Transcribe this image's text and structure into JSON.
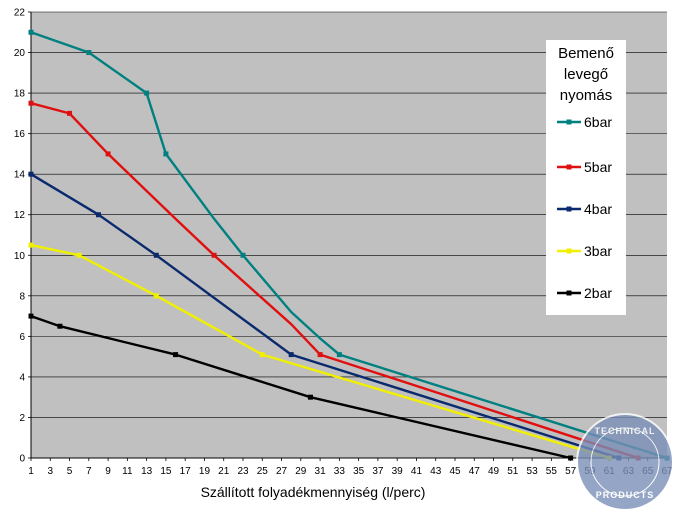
{
  "chart_data": {
    "type": "line",
    "xlabel": "Szállított folyadékmennyiség (l/perc)",
    "ylabel": "",
    "xlim": [
      1,
      67
    ],
    "ylim": [
      0,
      22
    ],
    "x_ticks": [
      1,
      3,
      5,
      7,
      9,
      11,
      13,
      15,
      17,
      19,
      21,
      23,
      25,
      27,
      29,
      31,
      33,
      35,
      37,
      39,
      41,
      43,
      45,
      47,
      49,
      51,
      53,
      55,
      57,
      59,
      61,
      63,
      65,
      67
    ],
    "y_ticks": [
      0,
      2,
      4,
      6,
      8,
      10,
      12,
      14,
      16,
      18,
      20,
      22
    ],
    "grid": "horizontal",
    "legend_position": "right",
    "legend_title": [
      "Bemenő",
      "levegő",
      "nyomás"
    ],
    "series": [
      {
        "name": "6bar",
        "color": "#008080",
        "points": [
          [
            1,
            21
          ],
          [
            7,
            20
          ],
          [
            13,
            18
          ],
          [
            15,
            15
          ],
          [
            20,
            11.8
          ],
          [
            23,
            10
          ],
          [
            28,
            7.2
          ],
          [
            31,
            5.9
          ],
          [
            33,
            5.1
          ],
          [
            67,
            0
          ]
        ],
        "markers": [
          [
            1,
            21
          ],
          [
            7,
            20
          ],
          [
            13,
            18
          ],
          [
            15,
            15
          ],
          [
            23,
            10
          ],
          [
            33,
            5.1
          ],
          [
            67,
            0
          ]
        ]
      },
      {
        "name": "5bar",
        "color": "#e01010",
        "points": [
          [
            1,
            17.5
          ],
          [
            5,
            17
          ],
          [
            9,
            15
          ],
          [
            16,
            11.8
          ],
          [
            20,
            10
          ],
          [
            28,
            6.6
          ],
          [
            31,
            5.1
          ],
          [
            64,
            0
          ]
        ],
        "markers": [
          [
            1,
            17.5
          ],
          [
            5,
            17
          ],
          [
            9,
            15
          ],
          [
            20,
            10
          ],
          [
            31,
            5.1
          ],
          [
            64,
            0
          ]
        ]
      },
      {
        "name": "4bar",
        "color": "#0a2a6e",
        "points": [
          [
            1,
            14
          ],
          [
            8,
            12
          ],
          [
            14,
            10
          ],
          [
            28,
            5.1
          ],
          [
            62,
            0
          ]
        ],
        "markers": [
          [
            1,
            14
          ],
          [
            8,
            12
          ],
          [
            14,
            10
          ],
          [
            28,
            5.1
          ],
          [
            62,
            0
          ]
        ]
      },
      {
        "name": "3bar",
        "color": "#f0f000",
        "points": [
          [
            1,
            10.5
          ],
          [
            6,
            10
          ],
          [
            14,
            8
          ],
          [
            25,
            5.1
          ],
          [
            61,
            0
          ]
        ],
        "markers": [
          [
            1,
            10.5
          ],
          [
            6,
            10
          ],
          [
            14,
            8
          ],
          [
            25,
            5.1
          ],
          [
            61,
            0
          ]
        ]
      },
      {
        "name": "2bar",
        "color": "#000000",
        "points": [
          [
            1,
            7
          ],
          [
            4,
            6.5
          ],
          [
            16,
            5.1
          ],
          [
            30,
            3
          ],
          [
            57,
            0
          ]
        ],
        "markers": [
          [
            1,
            7
          ],
          [
            4,
            6.5
          ],
          [
            16,
            5.1
          ],
          [
            30,
            3
          ],
          [
            57,
            0
          ]
        ]
      }
    ]
  },
  "watermark": {
    "lines": [
      "TECHNICAL",
      "PRODUCTS"
    ],
    "shape": "circle-logo"
  }
}
